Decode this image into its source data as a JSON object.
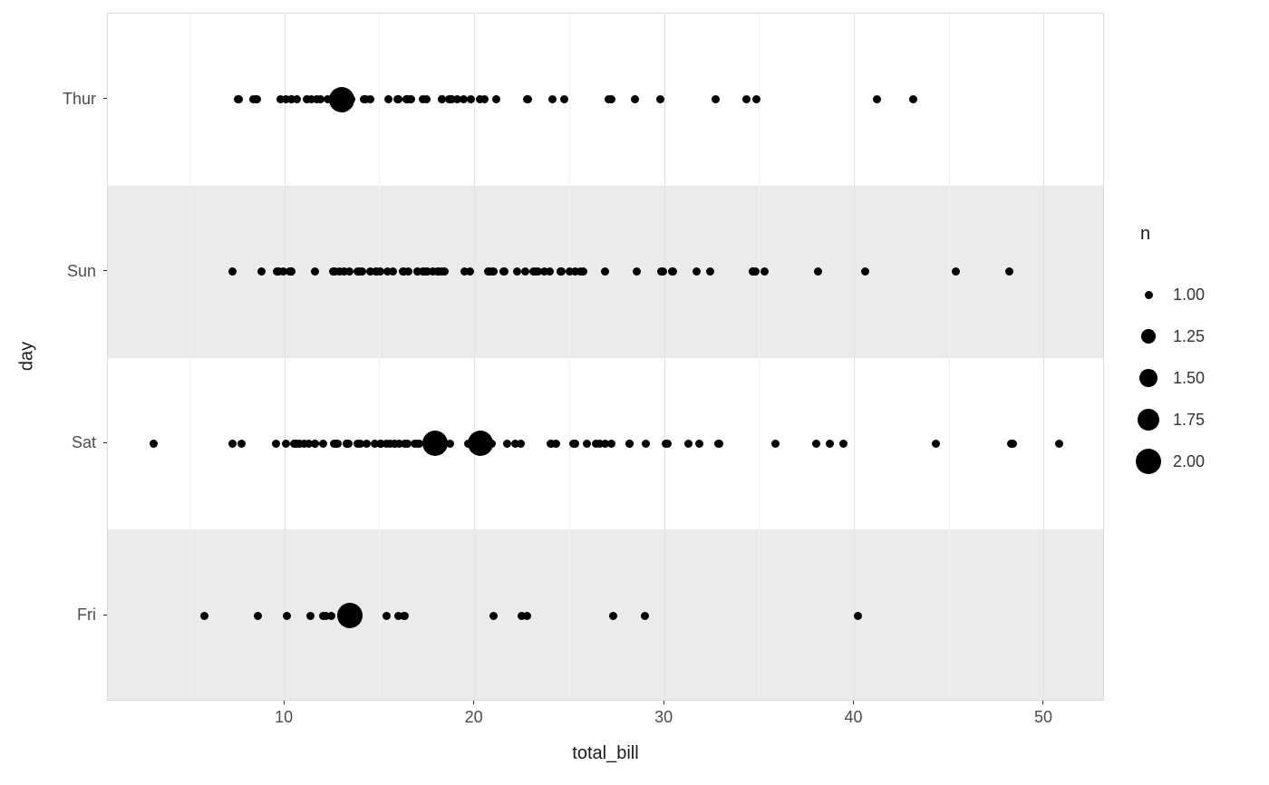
{
  "chart_data": {
    "type": "scatter",
    "variant": "count-bubble",
    "title": "",
    "xlabel": "total_bill",
    "ylabel": "day",
    "xlim": [
      0.68,
      53.2
    ],
    "x_ticks": [
      10,
      20,
      30,
      40,
      50
    ],
    "x_minor_ticks": [
      5,
      15,
      25,
      35,
      45
    ],
    "y_categories": [
      "Thur",
      "Sun",
      "Sat",
      "Fri"
    ],
    "grid": "on",
    "legend": {
      "title": "n",
      "position": "right",
      "breaks": [
        {
          "label": "1.00",
          "n": 1.0
        },
        {
          "label": "1.25",
          "n": 1.25
        },
        {
          "label": "1.50",
          "n": 1.5
        },
        {
          "label": "1.75",
          "n": 1.75
        },
        {
          "label": "2.00",
          "n": 2.0
        }
      ]
    },
    "series": [
      {
        "name": "Thur",
        "values": [
          27.2,
          22.76,
          17.29,
          19.44,
          16.66,
          10.07,
          32.68,
          15.98,
          34.83,
          13.03,
          18.28,
          24.71,
          21.16,
          10.65,
          12.43,
          24.08,
          11.69,
          13.42,
          14.26,
          15.95,
          12.48,
          29.8,
          8.52,
          14.52,
          11.38,
          22.82,
          19.08,
          20.27,
          11.17,
          12.26,
          18.26,
          8.51,
          10.33,
          14.15,
          16.0,
          13.16,
          17.47,
          34.3,
          41.19,
          27.05,
          16.43,
          8.35,
          18.64,
          11.87,
          9.78,
          7.51,
          19.81,
          28.44,
          15.48,
          16.58,
          7.56,
          10.34,
          43.11,
          13.0,
          13.51,
          18.71,
          12.74,
          13.0,
          16.4,
          20.53,
          16.47,
          18.78
        ]
      },
      {
        "name": "Sun",
        "values": [
          16.99,
          10.34,
          21.01,
          23.68,
          24.59,
          25.29,
          8.77,
          26.88,
          15.04,
          14.78,
          10.27,
          35.26,
          15.42,
          18.43,
          14.83,
          21.58,
          10.33,
          16.29,
          16.97,
          17.46,
          13.94,
          9.68,
          30.4,
          18.29,
          22.23,
          32.4,
          28.55,
          18.04,
          12.54,
          10.29,
          34.81,
          9.94,
          25.56,
          19.49,
          38.07,
          23.95,
          25.71,
          17.31,
          29.93,
          14.07,
          13.13,
          17.26,
          24.55,
          19.77,
          29.85,
          48.17,
          25.0,
          13.39,
          16.49,
          21.5,
          12.66,
          16.21,
          13.81,
          17.51,
          24.52,
          20.76,
          31.71,
          9.6,
          34.63,
          34.65,
          23.33,
          45.35,
          23.17,
          40.55,
          20.69,
          20.9,
          30.46,
          18.15,
          23.1,
          7.25,
          12.9,
          15.69,
          11.61,
          22.67,
          17.82,
          14.48
        ]
      },
      {
        "name": "Sat",
        "values": [
          20.65,
          17.92,
          20.29,
          15.77,
          39.42,
          19.82,
          17.81,
          13.37,
          12.69,
          21.7,
          19.65,
          9.55,
          18.35,
          15.06,
          20.69,
          17.78,
          24.06,
          16.31,
          16.93,
          18.69,
          31.27,
          16.04,
          38.01,
          26.41,
          11.24,
          48.27,
          20.29,
          13.81,
          11.02,
          18.29,
          17.59,
          20.08,
          16.45,
          3.07,
          20.23,
          15.01,
          12.02,
          17.07,
          26.86,
          25.28,
          14.73,
          10.51,
          17.92,
          44.3,
          22.42,
          20.92,
          15.36,
          20.49,
          25.21,
          18.24,
          14.31,
          14.0,
          7.25,
          10.59,
          10.63,
          50.81,
          15.81,
          31.85,
          16.82,
          32.9,
          17.89,
          26.59,
          38.73,
          24.27,
          12.76,
          30.06,
          25.89,
          48.33,
          13.27,
          28.17,
          28.15,
          11.59,
          7.74,
          30.14,
          20.45,
          13.28,
          22.12,
          24.01,
          11.61,
          10.77,
          15.53,
          10.07,
          12.6,
          32.83,
          35.83,
          29.03,
          27.18
        ]
      },
      {
        "name": "Fri",
        "values": [
          28.97,
          22.49,
          5.75,
          16.32,
          22.75,
          40.17,
          27.28,
          12.03,
          21.01,
          12.46,
          11.35,
          15.38,
          12.16,
          13.42,
          8.58,
          15.98,
          13.42,
          16.27,
          10.09
        ]
      }
    ],
    "colors": {
      "point": "#000000",
      "stripe": "#ebebeb",
      "panel_bg": "#ffffff",
      "grid_major": "#e3e3e3",
      "grid_minor": "#f1f1f1",
      "panel_border": "#d9d9d9",
      "axis_text": "#4d4d4d",
      "title_text": "#1a1a1a"
    }
  }
}
